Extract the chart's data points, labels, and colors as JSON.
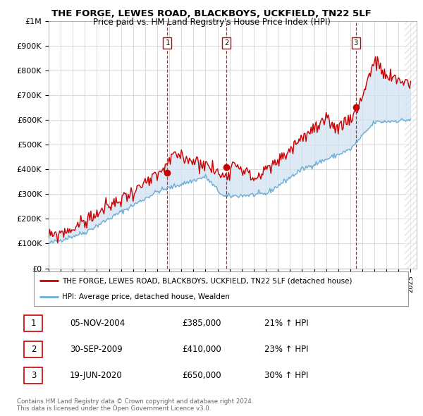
{
  "title_line1": "THE FORGE, LEWES ROAD, BLACKBOYS, UCKFIELD, TN22 5LF",
  "title_line2": "Price paid vs. HM Land Registry's House Price Index (HPI)",
  "ylabel_ticks": [
    "£0",
    "£100K",
    "£200K",
    "£300K",
    "£400K",
    "£500K",
    "£600K",
    "£700K",
    "£800K",
    "£900K",
    "£1M"
  ],
  "ytick_vals": [
    0,
    100000,
    200000,
    300000,
    400000,
    500000,
    600000,
    700000,
    800000,
    900000,
    1000000
  ],
  "xmin": 1995.0,
  "xmax": 2025.5,
  "ymin": 0,
  "ymax": 1000000,
  "transactions": [
    {
      "date": 2004.84,
      "price": 385000,
      "label": "1"
    },
    {
      "date": 2009.75,
      "price": 410000,
      "label": "2"
    },
    {
      "date": 2020.47,
      "price": 650000,
      "label": "3"
    }
  ],
  "legend_line1": "THE FORGE, LEWES ROAD, BLACKBOYS, UCKFIELD, TN22 5LF (detached house)",
  "legend_line2": "HPI: Average price, detached house, Wealden",
  "table_rows": [
    {
      "num": "1",
      "date": "05-NOV-2004",
      "price": "£385,000",
      "hpi": "21% ↑ HPI"
    },
    {
      "num": "2",
      "date": "30-SEP-2009",
      "price": "£410,000",
      "hpi": "23% ↑ HPI"
    },
    {
      "num": "3",
      "date": "19-JUN-2020",
      "price": "£650,000",
      "hpi": "30% ↑ HPI"
    }
  ],
  "footnote1": "Contains HM Land Registry data © Crown copyright and database right 2024.",
  "footnote2": "This data is licensed under the Open Government Licence v3.0.",
  "hpi_color": "#6baed6",
  "price_color": "#cc0000",
  "vline_color": "#cc0000",
  "shade_color": "#cfe2f3",
  "grid_color": "#cccccc",
  "bg_color": "#ffffff",
  "hatch_color": "#cccccc"
}
